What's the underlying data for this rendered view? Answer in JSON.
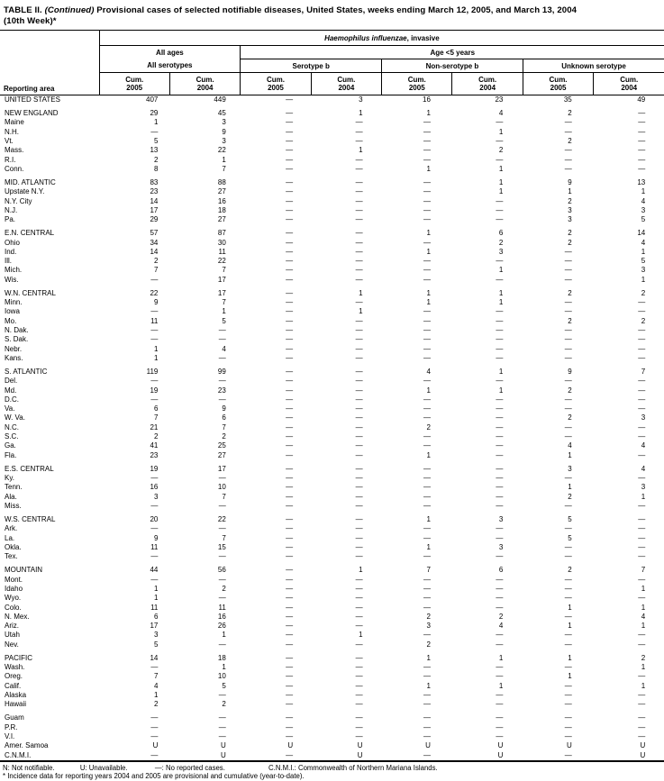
{
  "title": {
    "table_label": "TABLE II. ",
    "continued": "(Continued) ",
    "text": "Provisional cases of selected notifiable diseases, United States, weeks ending March 12, 2005, and March 13, 2004",
    "line2": "(10th Week)*"
  },
  "table": {
    "disease_italic": "Haemophilus influenzae",
    "disease_rest": ", invasive",
    "span_all_ages": "All ages",
    "span_age5": "Age <5 years",
    "serogroup_labels": [
      "All serotypes",
      "Serotype b",
      "Non-serotype b",
      "Unknown serotype"
    ],
    "reporting_area_label": "Reporting area",
    "col_headers": [
      {
        "label": "Cum.",
        "year": "2005"
      },
      {
        "label": "Cum.",
        "year": "2004"
      },
      {
        "label": "Cum.",
        "year": "2005"
      },
      {
        "label": "Cum.",
        "year": "2004"
      },
      {
        "label": "Cum.",
        "year": "2005"
      },
      {
        "label": "Cum.",
        "year": "2004"
      },
      {
        "label": "Cum.",
        "year": "2005"
      },
      {
        "label": "Cum.",
        "year": "2004"
      }
    ],
    "groups": [
      {
        "rows": [
          {
            "area": "UNITED STATES",
            "values": [
              "407",
              "449",
              "—",
              "3",
              "16",
              "23",
              "35",
              "49"
            ]
          }
        ]
      },
      {
        "rows": [
          {
            "area": "NEW ENGLAND",
            "values": [
              "29",
              "45",
              "—",
              "1",
              "1",
              "4",
              "2",
              "—"
            ]
          },
          {
            "area": "Maine",
            "values": [
              "1",
              "3",
              "—",
              "—",
              "—",
              "—",
              "—",
              "—"
            ]
          },
          {
            "area": "N.H.",
            "values": [
              "—",
              "9",
              "—",
              "—",
              "—",
              "1",
              "—",
              "—"
            ]
          },
          {
            "area": "Vt.",
            "values": [
              "5",
              "3",
              "—",
              "—",
              "—",
              "—",
              "2",
              "—"
            ]
          },
          {
            "area": "Mass.",
            "values": [
              "13",
              "22",
              "—",
              "1",
              "—",
              "2",
              "—",
              "—"
            ]
          },
          {
            "area": "R.I.",
            "values": [
              "2",
              "1",
              "—",
              "—",
              "—",
              "—",
              "—",
              "—"
            ]
          },
          {
            "area": "Conn.",
            "values": [
              "8",
              "7",
              "—",
              "—",
              "1",
              "1",
              "—",
              "—"
            ]
          }
        ]
      },
      {
        "rows": [
          {
            "area": "MID. ATLANTIC",
            "values": [
              "83",
              "88",
              "—",
              "—",
              "—",
              "1",
              "9",
              "13"
            ]
          },
          {
            "area": "Upstate N.Y.",
            "values": [
              "23",
              "27",
              "—",
              "—",
              "—",
              "1",
              "1",
              "1"
            ]
          },
          {
            "area": "N.Y. City",
            "values": [
              "14",
              "16",
              "—",
              "—",
              "—",
              "—",
              "2",
              "4"
            ]
          },
          {
            "area": "N.J.",
            "values": [
              "17",
              "18",
              "—",
              "—",
              "—",
              "—",
              "3",
              "3"
            ]
          },
          {
            "area": "Pa.",
            "values": [
              "29",
              "27",
              "—",
              "—",
              "—",
              "—",
              "3",
              "5"
            ]
          }
        ]
      },
      {
        "rows": [
          {
            "area": "E.N. CENTRAL",
            "values": [
              "57",
              "87",
              "—",
              "—",
              "1",
              "6",
              "2",
              "14"
            ]
          },
          {
            "area": "Ohio",
            "values": [
              "34",
              "30",
              "—",
              "—",
              "—",
              "2",
              "2",
              "4"
            ]
          },
          {
            "area": "Ind.",
            "values": [
              "14",
              "11",
              "—",
              "—",
              "1",
              "3",
              "—",
              "1"
            ]
          },
          {
            "area": "Ill.",
            "values": [
              "2",
              "22",
              "—",
              "—",
              "—",
              "—",
              "—",
              "5"
            ]
          },
          {
            "area": "Mich.",
            "values": [
              "7",
              "7",
              "—",
              "—",
              "—",
              "1",
              "—",
              "3"
            ]
          },
          {
            "area": "Wis.",
            "values": [
              "—",
              "17",
              "—",
              "—",
              "—",
              "—",
              "—",
              "1"
            ]
          }
        ]
      },
      {
        "rows": [
          {
            "area": "W.N. CENTRAL",
            "values": [
              "22",
              "17",
              "—",
              "1",
              "1",
              "1",
              "2",
              "2"
            ]
          },
          {
            "area": "Minn.",
            "values": [
              "9",
              "7",
              "—",
              "—",
              "1",
              "1",
              "—",
              "—"
            ]
          },
          {
            "area": "Iowa",
            "values": [
              "—",
              "1",
              "—",
              "1",
              "—",
              "—",
              "—",
              "—"
            ]
          },
          {
            "area": "Mo.",
            "values": [
              "11",
              "5",
              "—",
              "—",
              "—",
              "—",
              "2",
              "2"
            ]
          },
          {
            "area": "N. Dak.",
            "values": [
              "—",
              "—",
              "—",
              "—",
              "—",
              "—",
              "—",
              "—"
            ]
          },
          {
            "area": "S. Dak.",
            "values": [
              "—",
              "—",
              "—",
              "—",
              "—",
              "—",
              "—",
              "—"
            ]
          },
          {
            "area": "Nebr.",
            "values": [
              "1",
              "4",
              "—",
              "—",
              "—",
              "—",
              "—",
              "—"
            ]
          },
          {
            "area": "Kans.",
            "values": [
              "1",
              "—",
              "—",
              "—",
              "—",
              "—",
              "—",
              "—"
            ]
          }
        ]
      },
      {
        "rows": [
          {
            "area": "S. ATLANTIC",
            "values": [
              "119",
              "99",
              "—",
              "—",
              "4",
              "1",
              "9",
              "7"
            ]
          },
          {
            "area": "Del.",
            "values": [
              "—",
              "—",
              "—",
              "—",
              "—",
              "—",
              "—",
              "—"
            ]
          },
          {
            "area": "Md.",
            "values": [
              "19",
              "23",
              "—",
              "—",
              "1",
              "1",
              "2",
              "—"
            ]
          },
          {
            "area": "D.C.",
            "values": [
              "—",
              "—",
              "—",
              "—",
              "—",
              "—",
              "—",
              "—"
            ]
          },
          {
            "area": "Va.",
            "values": [
              "6",
              "9",
              "—",
              "—",
              "—",
              "—",
              "—",
              "—"
            ]
          },
          {
            "area": "W. Va.",
            "values": [
              "7",
              "6",
              "—",
              "—",
              "—",
              "—",
              "2",
              "3"
            ]
          },
          {
            "area": "N.C.",
            "values": [
              "21",
              "7",
              "—",
              "—",
              "2",
              "—",
              "—",
              "—"
            ]
          },
          {
            "area": "S.C.",
            "values": [
              "2",
              "2",
              "—",
              "—",
              "—",
              "—",
              "—",
              "—"
            ]
          },
          {
            "area": "Ga.",
            "values": [
              "41",
              "25",
              "—",
              "—",
              "—",
              "—",
              "4",
              "4"
            ]
          },
          {
            "area": "Fla.",
            "values": [
              "23",
              "27",
              "—",
              "—",
              "1",
              "—",
              "1",
              "—"
            ]
          }
        ]
      },
      {
        "rows": [
          {
            "area": "E.S. CENTRAL",
            "values": [
              "19",
              "17",
              "—",
              "—",
              "—",
              "—",
              "3",
              "4"
            ]
          },
          {
            "area": "Ky.",
            "values": [
              "—",
              "—",
              "—",
              "—",
              "—",
              "—",
              "—",
              "—"
            ]
          },
          {
            "area": "Tenn.",
            "values": [
              "16",
              "10",
              "—",
              "—",
              "—",
              "—",
              "1",
              "3"
            ]
          },
          {
            "area": "Ala.",
            "values": [
              "3",
              "7",
              "—",
              "—",
              "—",
              "—",
              "2",
              "1"
            ]
          },
          {
            "area": "Miss.",
            "values": [
              "—",
              "—",
              "—",
              "—",
              "—",
              "—",
              "—",
              "—"
            ]
          }
        ]
      },
      {
        "rows": [
          {
            "area": "W.S. CENTRAL",
            "values": [
              "20",
              "22",
              "—",
              "—",
              "1",
              "3",
              "5",
              "—"
            ]
          },
          {
            "area": "Ark.",
            "values": [
              "—",
              "—",
              "—",
              "—",
              "—",
              "—",
              "—",
              "—"
            ]
          },
          {
            "area": "La.",
            "values": [
              "9",
              "7",
              "—",
              "—",
              "—",
              "—",
              "5",
              "—"
            ]
          },
          {
            "area": "Okla.",
            "values": [
              "11",
              "15",
              "—",
              "—",
              "1",
              "3",
              "—",
              "—"
            ]
          },
          {
            "area": "Tex.",
            "values": [
              "—",
              "—",
              "—",
              "—",
              "—",
              "—",
              "—",
              "—"
            ]
          }
        ]
      },
      {
        "rows": [
          {
            "area": "MOUNTAIN",
            "values": [
              "44",
              "56",
              "—",
              "1",
              "7",
              "6",
              "2",
              "7"
            ]
          },
          {
            "area": "Mont.",
            "values": [
              "—",
              "—",
              "—",
              "—",
              "—",
              "—",
              "—",
              "—"
            ]
          },
          {
            "area": "Idaho",
            "values": [
              "1",
              "2",
              "—",
              "—",
              "—",
              "—",
              "—",
              "1"
            ]
          },
          {
            "area": "Wyo.",
            "values": [
              "1",
              "—",
              "—",
              "—",
              "—",
              "—",
              "—",
              "—"
            ]
          },
          {
            "area": "Colo.",
            "values": [
              "11",
              "11",
              "—",
              "—",
              "—",
              "—",
              "1",
              "1"
            ]
          },
          {
            "area": "N. Mex.",
            "values": [
              "6",
              "16",
              "—",
              "—",
              "2",
              "2",
              "—",
              "4"
            ]
          },
          {
            "area": "Ariz.",
            "values": [
              "17",
              "26",
              "—",
              "—",
              "3",
              "4",
              "1",
              "1"
            ]
          },
          {
            "area": "Utah",
            "values": [
              "3",
              "1",
              "—",
              "1",
              "—",
              "—",
              "—",
              "—"
            ]
          },
          {
            "area": "Nev.",
            "values": [
              "5",
              "—",
              "—",
              "—",
              "2",
              "—",
              "—",
              "—"
            ]
          }
        ]
      },
      {
        "rows": [
          {
            "area": "PACIFIC",
            "values": [
              "14",
              "18",
              "—",
              "—",
              "1",
              "1",
              "1",
              "2"
            ]
          },
          {
            "area": "Wash.",
            "values": [
              "—",
              "1",
              "—",
              "—",
              "—",
              "—",
              "—",
              "1"
            ]
          },
          {
            "area": "Oreg.",
            "values": [
              "7",
              "10",
              "—",
              "—",
              "—",
              "—",
              "1",
              "—"
            ]
          },
          {
            "area": "Calif.",
            "values": [
              "4",
              "5",
              "—",
              "—",
              "1",
              "1",
              "—",
              "1"
            ]
          },
          {
            "area": "Alaska",
            "values": [
              "1",
              "—",
              "—",
              "—",
              "—",
              "—",
              "—",
              "—"
            ]
          },
          {
            "area": "Hawaii",
            "values": [
              "2",
              "2",
              "—",
              "—",
              "—",
              "—",
              "—",
              "—"
            ]
          }
        ]
      },
      {
        "rows": [
          {
            "area": "Guam",
            "values": [
              "—",
              "—",
              "—",
              "—",
              "—",
              "—",
              "—",
              "—"
            ]
          },
          {
            "area": "P.R.",
            "values": [
              "—",
              "—",
              "—",
              "—",
              "—",
              "—",
              "—",
              "—"
            ]
          },
          {
            "area": "V.I.",
            "values": [
              "—",
              "—",
              "—",
              "—",
              "—",
              "—",
              "—",
              "—"
            ]
          },
          {
            "area": "Amer. Samoa",
            "values": [
              "U",
              "U",
              "U",
              "U",
              "U",
              "U",
              "U",
              "U"
            ]
          },
          {
            "area": "C.N.M.I.",
            "values": [
              "—",
              "U",
              "—",
              "U",
              "—",
              "U",
              "—",
              "U"
            ]
          }
        ]
      }
    ]
  },
  "footnotes": {
    "legend": [
      "N: Not notifiable.",
      "U: Unavailable.",
      "—: No reported cases.",
      "C.N.M.I.: Commonwealth of Northern Mariana Islands."
    ],
    "asterisk": "* Incidence data for reporting years 2004 and 2005 are provisional and cumulative (year-to-date)."
  }
}
